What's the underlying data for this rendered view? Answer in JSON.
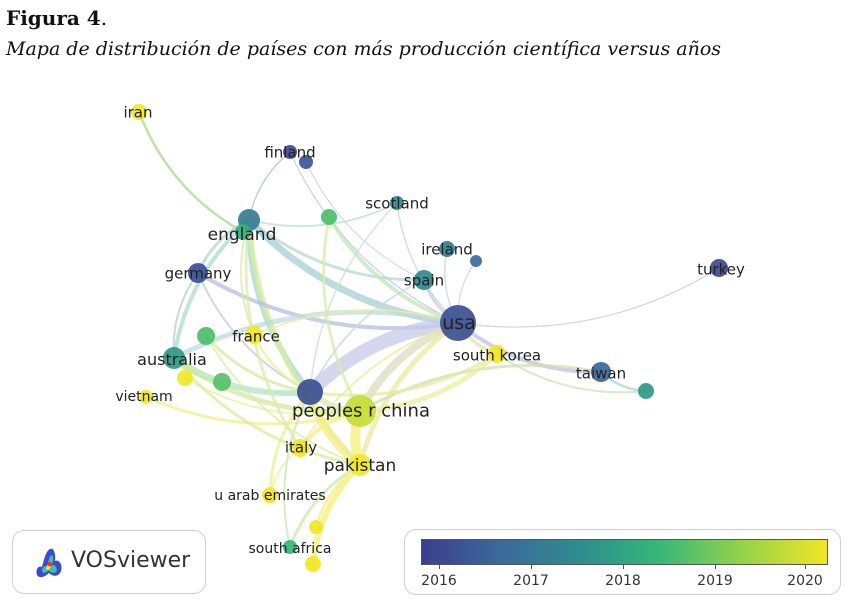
{
  "figure": {
    "label": "Figura 4",
    "label_suffix": ".",
    "caption": "Mapa de distribución de países con más producción científica versus años"
  },
  "network": {
    "nodes": [
      {
        "id": "iran",
        "label": "iran",
        "year": 2020.0
      },
      {
        "id": "finland",
        "label": "finland",
        "year": 2016.2
      },
      {
        "id": "finland2",
        "label": "",
        "year": 2016.4
      },
      {
        "id": "scotland",
        "label": "scotland",
        "year": 2017.5
      },
      {
        "id": "england",
        "label": "england",
        "year": 2017.2
      },
      {
        "id": "england_g",
        "label": "",
        "year": 2018.2
      },
      {
        "id": "unk_top",
        "label": "",
        "year": 2018.5
      },
      {
        "id": "ireland",
        "label": "ireland",
        "year": 2017.2
      },
      {
        "id": "ireland2",
        "label": "",
        "year": 2016.8
      },
      {
        "id": "spain",
        "label": "spain",
        "year": 2017.5
      },
      {
        "id": "germany",
        "label": "germany",
        "year": 2016.3
      },
      {
        "id": "turkey",
        "label": "turkey",
        "year": 2016.2
      },
      {
        "id": "usa",
        "label": "usa",
        "year": 2016.3
      },
      {
        "id": "france",
        "label": "france",
        "year": 2020.0
      },
      {
        "id": "unk_fr",
        "label": "",
        "year": 2018.5
      },
      {
        "id": "australia",
        "label": "australia",
        "year": 2017.8
      },
      {
        "id": "south_korea",
        "label": "south korea",
        "year": 2020.0
      },
      {
        "id": "taiwan",
        "label": "taiwan",
        "year": 2016.7
      },
      {
        "id": "unk_tw",
        "label": "",
        "year": 2017.8
      },
      {
        "id": "vietnam",
        "label": "vietnam",
        "year": 2020.0
      },
      {
        "id": "unk_vn",
        "label": "",
        "year": 2020.0
      },
      {
        "id": "unk_au",
        "label": "",
        "year": 2018.6
      },
      {
        "id": "china",
        "label": "peoples r china",
        "year": 2016.3
      },
      {
        "id": "china_y",
        "label": "",
        "year": 2019.6
      },
      {
        "id": "italy",
        "label": "italy",
        "year": 2020.0
      },
      {
        "id": "pakistan",
        "label": "pakistan",
        "year": 2020.0
      },
      {
        "id": "uae",
        "label": "u arab emirates",
        "year": 2020.0
      },
      {
        "id": "unk_sa",
        "label": "",
        "year": 2020.0
      },
      {
        "id": "south_africa",
        "label": "south africa",
        "year": 2018.3
      },
      {
        "id": "unk_bot",
        "label": "",
        "year": 2020.0
      }
    ]
  },
  "legend": {
    "brand": "VOSviewer",
    "ticks": [
      "2016",
      "2017",
      "2018",
      "2019",
      "2020"
    ]
  },
  "colors": {
    "y2016": "#3b3f8e",
    "y2017": "#3c6a9b",
    "y2018": "#2d8f8c",
    "y2019": "#8fd14c",
    "y2020": "#f1e625"
  }
}
